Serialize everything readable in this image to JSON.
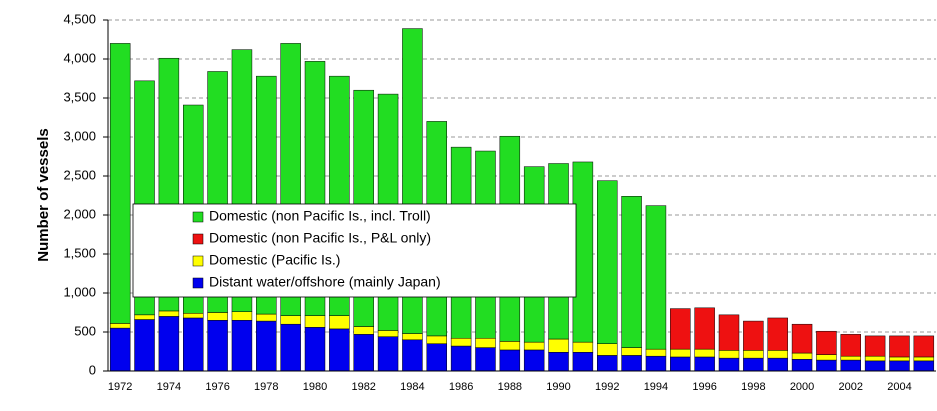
{
  "chart_data": {
    "type": "stacked-bar",
    "y_label": "Number of vessels",
    "categories": [
      "1972",
      null,
      "1974",
      null,
      "1976",
      null,
      "1978",
      null,
      "1980",
      null,
      "1982",
      null,
      "1984",
      null,
      "1986",
      null,
      "1988",
      null,
      "1990",
      null,
      "1992",
      null,
      "1994",
      null,
      "1996",
      null,
      "1998",
      null,
      "2000",
      null,
      "2002",
      null,
      "2004",
      null
    ],
    "series": [
      {
        "name": "Distant water/offshore (mainly Japan)",
        "color": "#0000ee",
        "values": [
          550,
          660,
          700,
          680,
          650,
          650,
          640,
          600,
          560,
          540,
          470,
          440,
          400,
          350,
          320,
          300,
          270,
          270,
          240,
          240,
          200,
          200,
          190,
          180,
          180,
          165,
          165,
          165,
          150,
          140,
          140,
          130,
          130,
          130
        ]
      },
      {
        "name": "Domestic (Pacific Is.)",
        "color": "#ffff00",
        "values": [
          60,
          60,
          70,
          60,
          100,
          110,
          90,
          110,
          150,
          170,
          100,
          80,
          80,
          100,
          100,
          120,
          110,
          100,
          170,
          130,
          150,
          100,
          90,
          100,
          100,
          100,
          100,
          100,
          80,
          70,
          50,
          60,
          50,
          50
        ]
      },
      {
        "name": "Domestic (non Pacific Is., P&L only)",
        "color": "#ee1111",
        "values": [
          0,
          0,
          0,
          0,
          0,
          0,
          0,
          0,
          0,
          0,
          0,
          0,
          0,
          0,
          0,
          0,
          0,
          0,
          0,
          0,
          0,
          0,
          0,
          520,
          530,
          455,
          375,
          415,
          370,
          300,
          280,
          260,
          270,
          270
        ]
      },
      {
        "name": "Domestic (non Pacific Is., incl. Troll)",
        "color": "#22dd22",
        "values": [
          3590,
          3000,
          3240,
          2670,
          3090,
          3360,
          3050,
          3490,
          3260,
          3070,
          3030,
          3030,
          3910,
          2750,
          2450,
          2400,
          2630,
          2250,
          2250,
          2310,
          2090,
          1940,
          1840,
          0,
          0,
          0,
          0,
          0,
          0,
          0,
          0,
          0,
          0,
          0
        ]
      }
    ],
    "ylim": [
      0,
      4500
    ],
    "yticks": [
      0,
      500,
      {
        "value": 1000,
        "label": "1,000"
      },
      {
        "value": 1500,
        "label": "1,500"
      },
      {
        "value": 2000,
        "label": "2,000"
      },
      {
        "value": 2500,
        "label": "2,500"
      },
      {
        "value": 3000,
        "label": "3,000"
      },
      {
        "value": 3500,
        "label": "3,500"
      },
      {
        "value": 4000,
        "label": "4,000"
      },
      {
        "value": 4500,
        "label": "4,500"
      }
    ],
    "grid": true
  }
}
